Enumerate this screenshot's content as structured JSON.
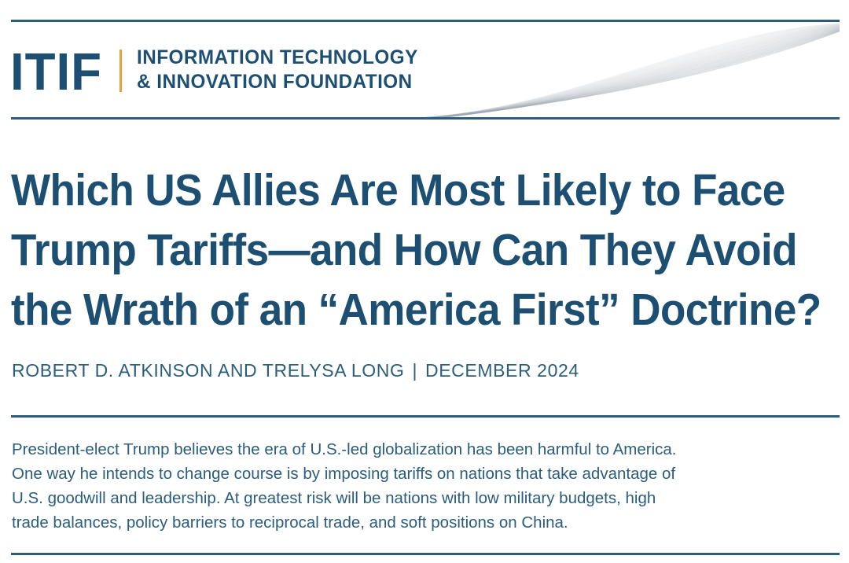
{
  "header": {
    "logo_mark": "ITIF",
    "org_name_line1": "INFORMATION TECHNOLOGY",
    "org_name_line2": "& INNOVATION FOUNDATION"
  },
  "report": {
    "title_lines": [
      "Which US Allies Are Most Likely to Face",
      "Trump Tariffs—and How Can They Avoid",
      "the Wrath of an “America First” Doctrine?"
    ],
    "authors": "ROBERT D. ATKINSON AND TRELYSA LONG",
    "byline_separator": "|",
    "date": "DECEMBER 2024",
    "abstract_lines": [
      "President-elect Trump believes the era of U.S.-led globalization has been harmful to America.",
      "One way he intends to change course is by imposing tariffs on nations that take advantage of",
      "U.S. goodwill and leadership. At greatest risk will be nations with low military budgets, high",
      "trade balances, policy barriers to reciprocal trade, and soft positions on China."
    ]
  },
  "colors": {
    "primary": "#1d4f73",
    "rule": "#2b5d7c",
    "accent": "#e8a03b"
  }
}
